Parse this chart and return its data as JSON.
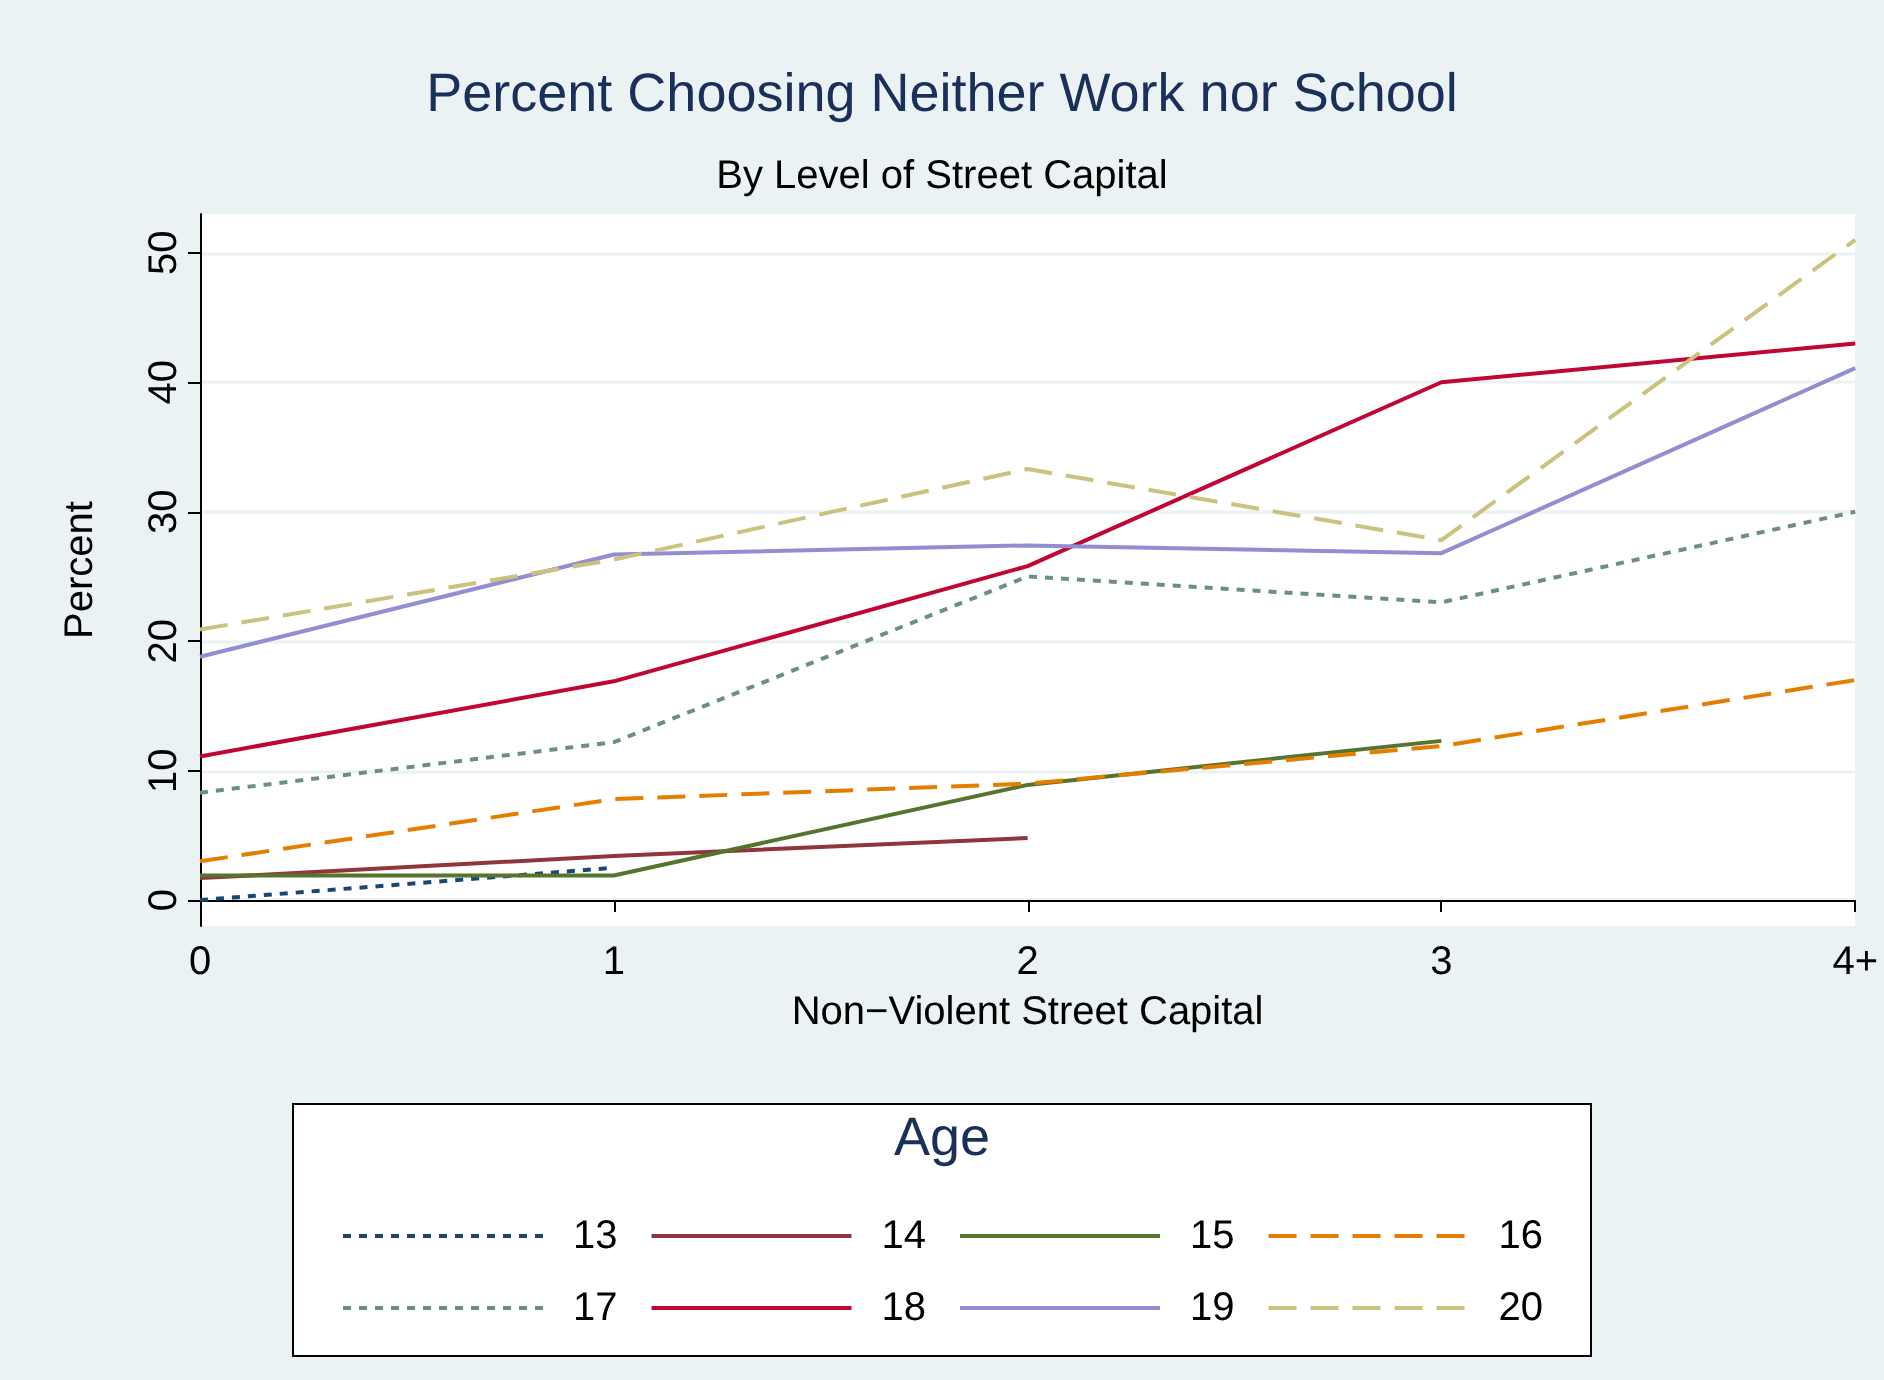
{
  "chart_data": {
    "type": "line",
    "title": "Percent Choosing Neither Work nor School",
    "subtitle": "By Level of Street Capital",
    "xlabel": "Non−Violent Street Capital",
    "ylabel": "Percent",
    "legend_title": "Age",
    "categories": [
      "0",
      "1",
      "2",
      "3",
      "4+"
    ],
    "ylim": [
      -2,
      53
    ],
    "yticks": [
      0,
      10,
      20,
      30,
      40,
      50
    ],
    "grid": "y",
    "legend": "bottom",
    "marker": "none",
    "series": [
      {
        "name": "13",
        "color": "#1a476f",
        "line_style": "dotted",
        "values": [
          0,
          2.5,
          null,
          null,
          null
        ]
      },
      {
        "name": "14",
        "color": "#90353b",
        "line_style": "solid",
        "values": [
          1.7,
          3.4,
          4.8,
          null,
          null
        ]
      },
      {
        "name": "15",
        "color": "#55752f",
        "line_style": "solid",
        "values": [
          1.9,
          1.9,
          8.9,
          12.3,
          null
        ]
      },
      {
        "name": "16",
        "color": "#e37e00",
        "line_style": "dashed",
        "values": [
          3,
          7.8,
          9,
          11.9,
          17
        ]
      },
      {
        "name": "17",
        "color": "#6e8e84",
        "line_style": "dotted",
        "values": [
          8.3,
          12.2,
          25,
          23,
          30
        ]
      },
      {
        "name": "18",
        "color": "#c10534",
        "line_style": "solid",
        "values": [
          11.1,
          16.9,
          25.8,
          40,
          43
        ]
      },
      {
        "name": "19",
        "color": "#938dd2",
        "line_style": "solid",
        "values": [
          18.8,
          26.7,
          27.4,
          26.8,
          41.1
        ]
      },
      {
        "name": "20",
        "color": "#cac27e",
        "line_style": "dashed",
        "values": [
          20.9,
          26.3,
          33.3,
          27.8,
          51
        ]
      }
    ]
  }
}
